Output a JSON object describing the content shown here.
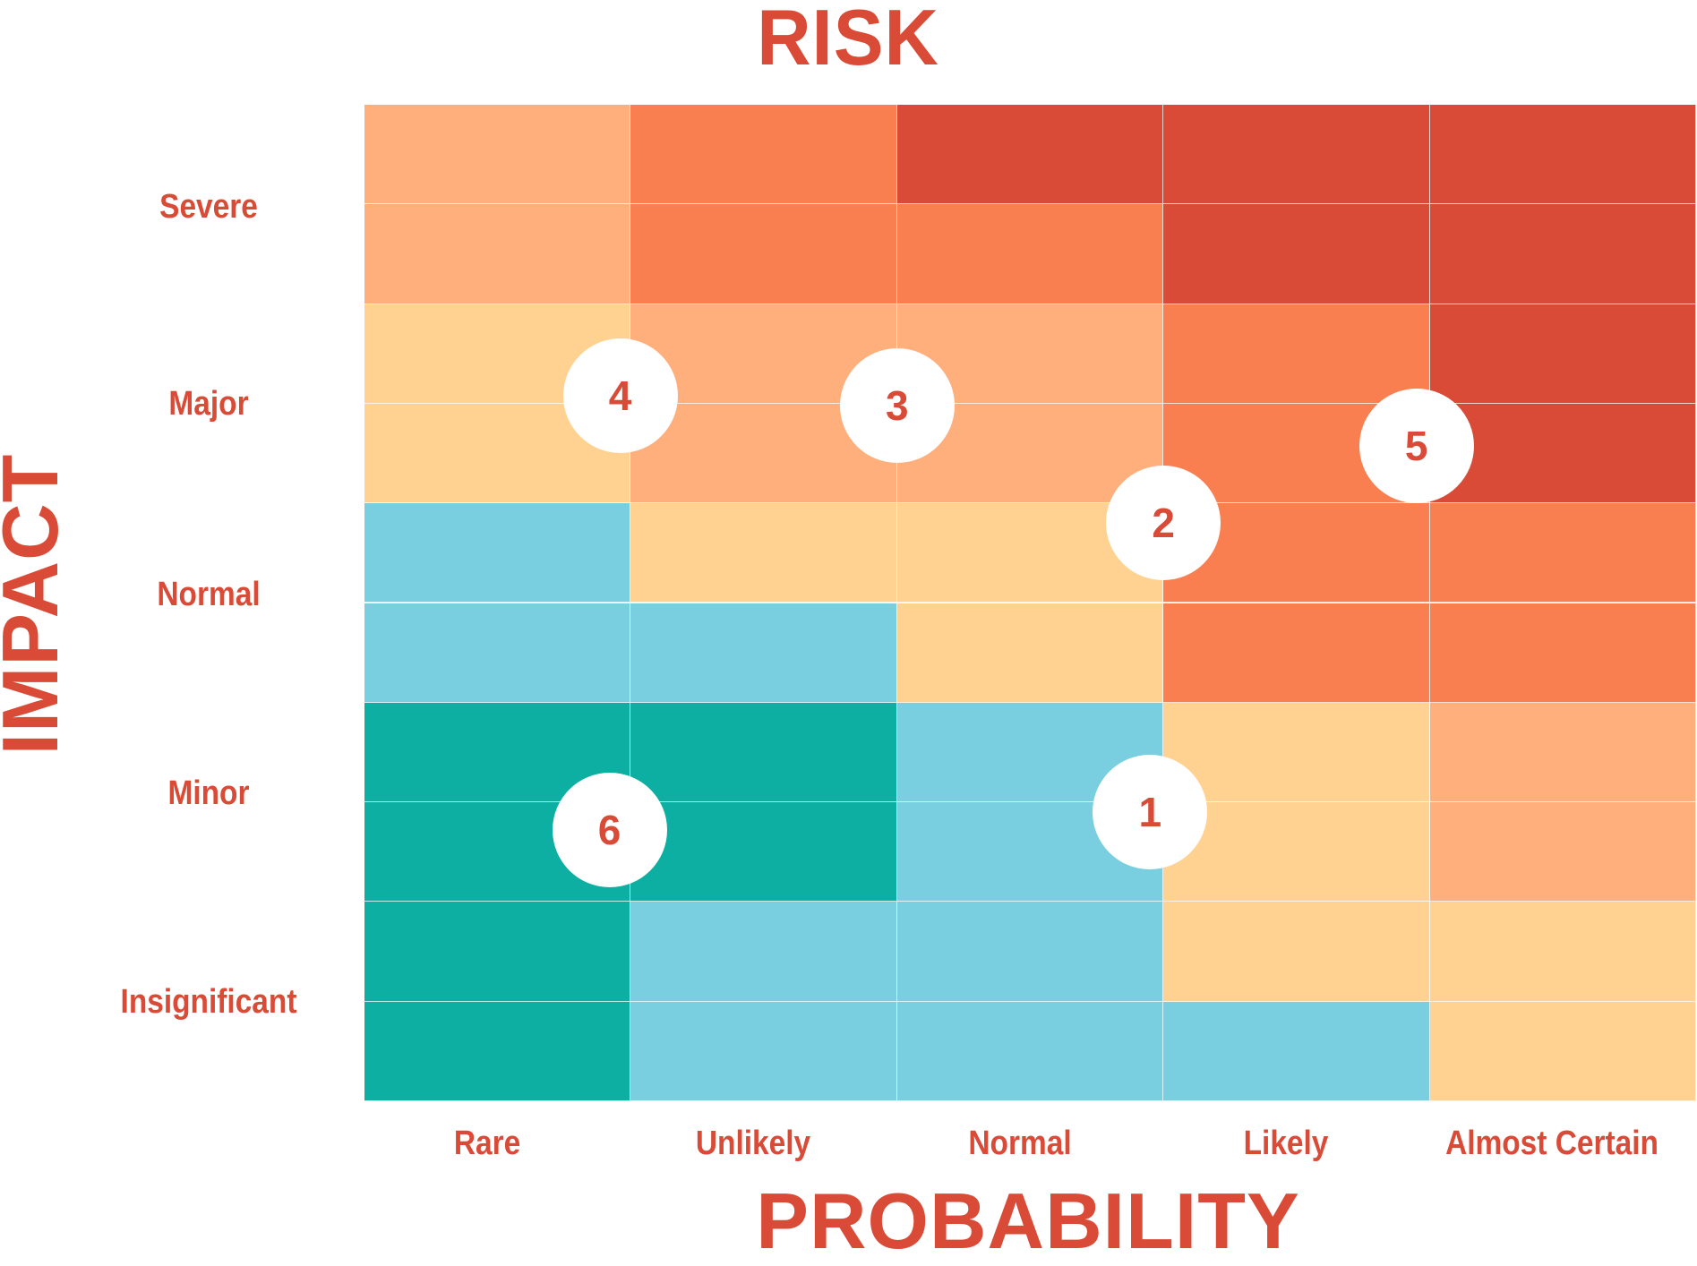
{
  "chart_data": {
    "type": "heatmap",
    "title": "RISK",
    "xlabel": "PROBABILITY",
    "ylabel": "IMPACT",
    "x_categories": [
      "Rare",
      "Unlikely",
      "Normal",
      "Likely",
      "Almost Certain"
    ],
    "y_categories": [
      "Severe",
      "Major",
      "Normal",
      "Minor",
      "Insignificant"
    ],
    "palette": {
      "peach": "#FFAF7C",
      "orange": "#FA7F50",
      "red": "#D94B37",
      "yellow": "#FFD292",
      "lightblue": "#79CFDF",
      "teal": "#0DAFA2"
    },
    "text_color": "#D94B37",
    "half_rows": [
      [
        "peach",
        "orange",
        "red",
        "red",
        "red"
      ],
      [
        "peach",
        "orange",
        "orange",
        "red",
        "red"
      ],
      [
        "yellow",
        "peach",
        "peach",
        "orange",
        "red"
      ],
      [
        "yellow",
        "peach",
        "peach",
        "orange",
        "red"
      ],
      [
        "lightblue",
        "yellow",
        "yellow",
        "orange",
        "orange"
      ],
      [
        "lightblue",
        "lightblue",
        "yellow",
        "orange",
        "orange"
      ],
      [
        "teal",
        "teal",
        "lightblue",
        "yellow",
        "peach"
      ],
      [
        "teal",
        "teal",
        "lightblue",
        "yellow",
        "peach"
      ],
      [
        "teal",
        "lightblue",
        "lightblue",
        "yellow",
        "yellow"
      ],
      [
        "teal",
        "lightblue",
        "lightblue",
        "lightblue",
        "yellow"
      ]
    ],
    "markers": [
      {
        "label": "1",
        "probability": 2.95,
        "impact_from_top": 3.55
      },
      {
        "label": "2",
        "probability": 3.0,
        "impact_from_top": 2.1
      },
      {
        "label": "3",
        "probability": 2.0,
        "impact_from_top": 1.51
      },
      {
        "label": "4",
        "probability": 0.96,
        "impact_from_top": 1.46
      },
      {
        "label": "5",
        "probability": 3.95,
        "impact_from_top": 1.71
      },
      {
        "label": "6",
        "probability": 0.92,
        "impact_from_top": 3.64
      }
    ]
  }
}
